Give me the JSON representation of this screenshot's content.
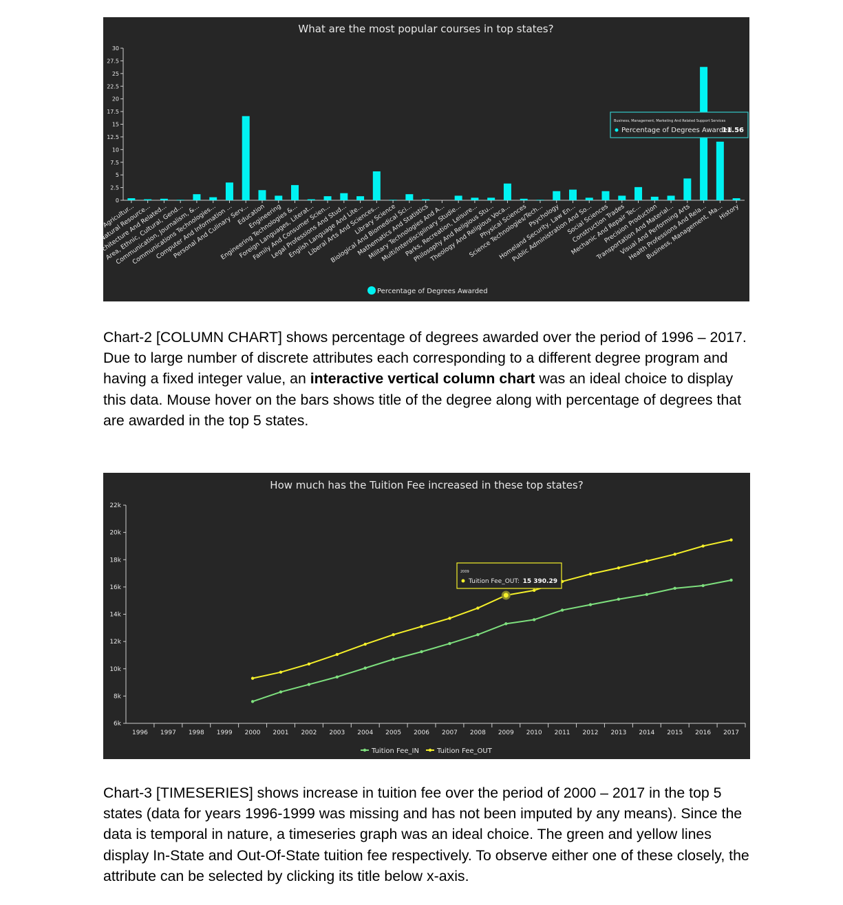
{
  "colors": {
    "panel_bg": "#262626",
    "bar": "#00f2f2",
    "tuition_in": "#7ee07e",
    "tuition_out": "#f5f02a",
    "axis": "#cfcfcf",
    "chalk_text": "#e8e8e8"
  },
  "chart_data": [
    {
      "type": "bar",
      "title": "What are the most popular courses in top states?",
      "legend": "Percentage of Degrees Awarded",
      "legend_placement": "bottom",
      "ylim": [
        0,
        30
      ],
      "yticks": [
        "0",
        "2.5",
        "5",
        "7.5",
        "10",
        "12.5",
        "15",
        "17.5",
        "20",
        "22.5",
        "25",
        "27.5",
        "30"
      ],
      "categories": [
        "Agricultur...",
        "Natural Resource...",
        "Architecture And Related...",
        "Area, Ethnic, Cultural, Gend...",
        "Communication, Journalism, &...",
        "Communications Technologies...",
        "Computer And Information ...",
        "Personal And Culinary Serv...",
        "Education",
        "Engineering",
        "Engineering Technologies &...",
        "Foreign Languages, Literat...",
        "Family And Consumer Scien...",
        "Legal Professions And Stud...",
        "English Language And Lite...",
        "Liberal Arts And Sciences...",
        "Library Science",
        "Biological And Biomedical Sci...",
        "Mathematics And Statistics",
        "Military Technologies And A...",
        "Multi/Interdisciplinary Studie...",
        "Parks, Recreation, Leisure...",
        "Philosophy And Religious Stu...",
        "Theology And Religious Voca...",
        "Physical Sciences",
        "Science Technologies/Tech...",
        "Psychology",
        "Homeland Security, Law En...",
        "Public Administration And So...",
        "Social Sciences",
        "Construction Trades",
        "Mechanic And Repair Tec...",
        "Precision Production",
        "Transportation And Material...",
        "Visual And Performing Arts",
        "Health Professions And Rela...",
        "Business, Management, Ma...",
        "History"
      ],
      "values": [
        0.4,
        0.2,
        0.3,
        0.1,
        1.2,
        0.6,
        3.5,
        16.6,
        2.0,
        0.9,
        3.0,
        0.2,
        0.8,
        1.4,
        0.8,
        5.7,
        0.1,
        1.2,
        0.2,
        0.0,
        0.9,
        0.5,
        0.5,
        3.3,
        0.3,
        0.1,
        1.8,
        2.1,
        0.5,
        1.8,
        0.9,
        2.6,
        0.7,
        0.9,
        4.3,
        26.3,
        11.56,
        0.4
      ],
      "tooltip": {
        "category": "Business, Management, Marketing And Related Support Services",
        "series": "Percentage of Degrees Awarded",
        "value": "11.56"
      }
    },
    {
      "type": "line",
      "title": "How much has the Tuition Fee increased in these top states?",
      "x": [
        "1996",
        "1997",
        "1998",
        "1999",
        "2000",
        "2001",
        "2002",
        "2003",
        "2004",
        "2005",
        "2006",
        "2007",
        "2008",
        "2009",
        "2010",
        "2011",
        "2012",
        "2013",
        "2014",
        "2015",
        "2016",
        "2017"
      ],
      "ylim": [
        6000,
        22000
      ],
      "yticks": [
        "6k",
        "8k",
        "10k",
        "12k",
        "14k",
        "16k",
        "18k",
        "20k",
        "22k"
      ],
      "series": [
        {
          "name": "Tuition Fee_IN",
          "values": [
            null,
            null,
            null,
            null,
            7600,
            8300,
            8850,
            9400,
            10050,
            10700,
            11250,
            11850,
            12500,
            13300,
            13600,
            14300,
            14700,
            15100,
            15450,
            15900,
            16100,
            16500
          ]
        },
        {
          "name": "Tuition Fee_OUT",
          "values": [
            null,
            null,
            null,
            null,
            9300,
            9750,
            10350,
            11050,
            11800,
            12500,
            13100,
            13700,
            14450,
            15390.29,
            15750,
            16400,
            16950,
            17400,
            17900,
            18400,
            19000,
            19450
          ]
        }
      ],
      "legend_placement": "bottom",
      "tooltip": {
        "year": "2009",
        "series": "Tuition Fee_OUT",
        "value": "15 390.29"
      }
    }
  ],
  "paragraphs": {
    "p1_a": "Chart-2 [COLUMN CHART] shows percentage of degrees awarded over the period of 1996 – 2017. Due to large number of discrete attributes each corresponding to a different degree program and having a fixed integer value, an ",
    "p1_bold": "interactive vertical column chart",
    "p1_b": " was an ideal choice to display this data. Mouse hover on the bars shows title of the degree along with percentage of degrees that are awarded in the top 5 states.",
    "p2": "Chart-3 [TIMESERIES] shows increase in tuition fee over the period of 2000 – 2017 in the top 5 states (data for years 1996-1999 was missing and has not been imputed by any means). Since the data is temporal in nature, a timeseries graph was an ideal choice. The green and yellow lines display In-State and Out-Of-State tuition fee respectively. To observe either one of these closely, the attribute can be selected by clicking its title below x-axis."
  }
}
